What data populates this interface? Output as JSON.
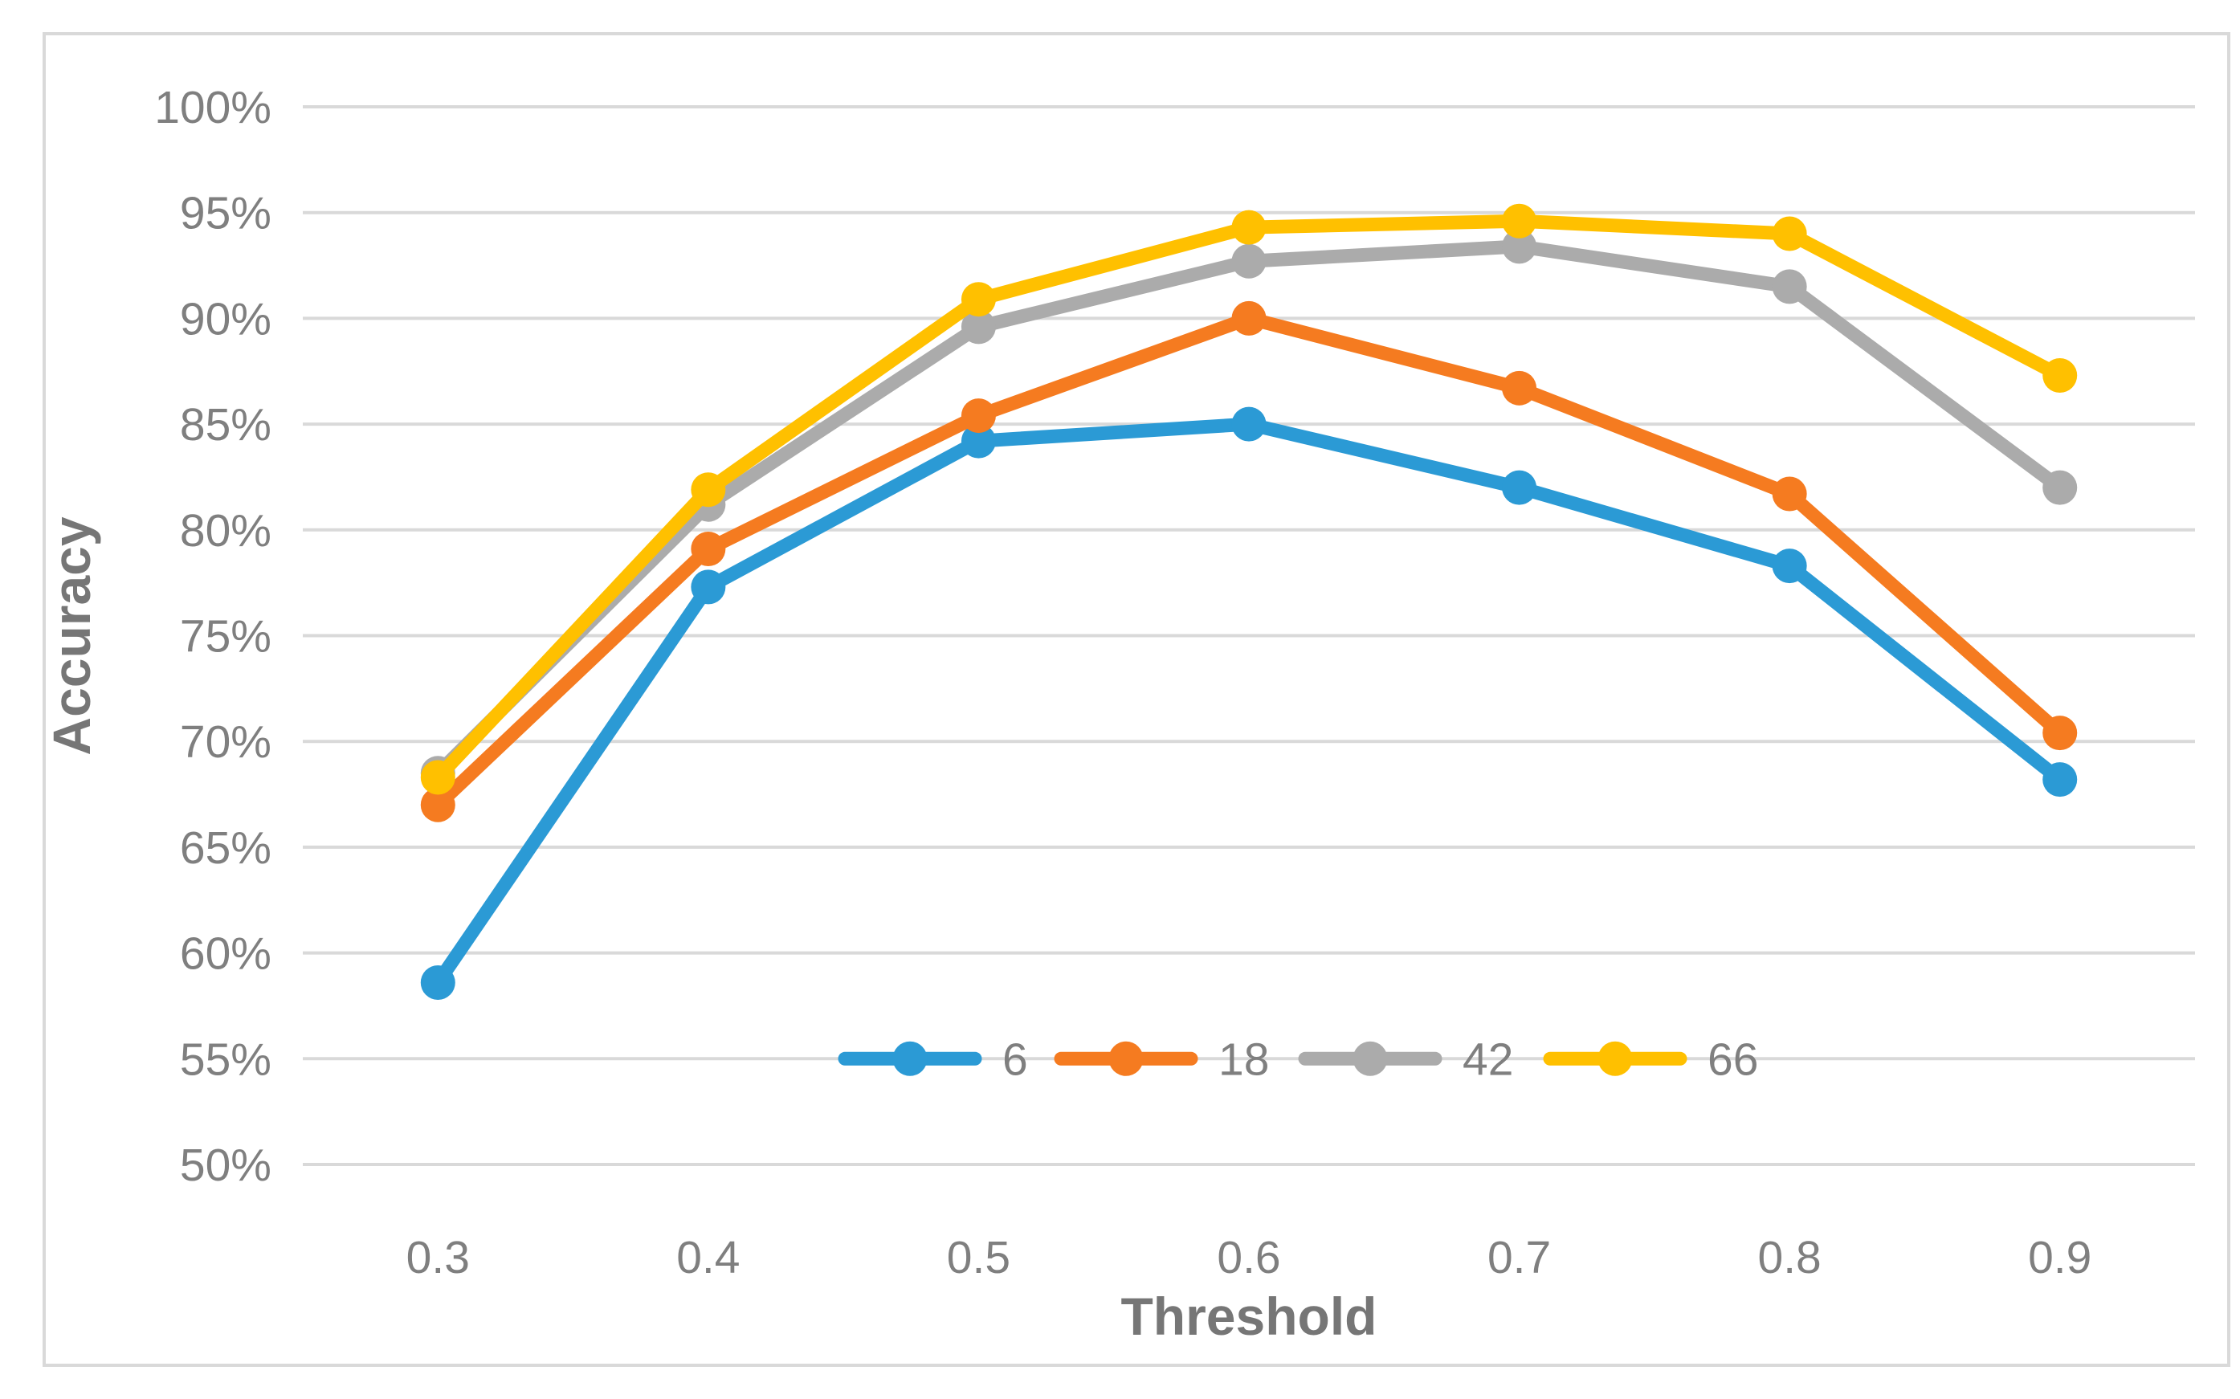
{
  "chart_data": {
    "type": "line",
    "title": "",
    "xlabel": "Threshold",
    "ylabel": "Accuracy",
    "categories": [
      "0.3",
      "0.4",
      "0.5",
      "0.6",
      "0.7",
      "0.8",
      "0.9"
    ],
    "series": [
      {
        "name": "6",
        "color": "#2B9AD5",
        "values": [
          58.6,
          77.3,
          84.2,
          85.0,
          82.0,
          78.3,
          68.2
        ]
      },
      {
        "name": "18",
        "color": "#F57B20",
        "values": [
          67.0,
          79.1,
          85.4,
          90.0,
          86.7,
          81.7,
          70.4
        ]
      },
      {
        "name": "42",
        "color": "#ABABAB",
        "values": [
          68.5,
          81.2,
          89.6,
          92.7,
          93.4,
          91.5,
          82.0
        ]
      },
      {
        "name": "66",
        "color": "#FFC000",
        "values": [
          68.3,
          81.9,
          90.9,
          94.3,
          94.6,
          94.0,
          87.3
        ]
      }
    ],
    "ylim": [
      50,
      100
    ],
    "ytick_step": 5,
    "ytick_labels": [
      "50%",
      "55%",
      "60%",
      "65%",
      "70%",
      "75%",
      "80%",
      "85%",
      "90%",
      "95%",
      "100%"
    ],
    "ytick_format": "percent",
    "grid": "horizontal-only",
    "legend_position": "bottom-center-inside",
    "legend_labels": [
      "6",
      "18",
      "42",
      "66"
    ],
    "marker": "circle"
  },
  "colors": {
    "background": "#FFFFFF",
    "frame_border": "#D9D9D9",
    "gridline": "#D9D9D9",
    "tick_text": "#7F7F7F",
    "axis_title_text": "#767676"
  }
}
